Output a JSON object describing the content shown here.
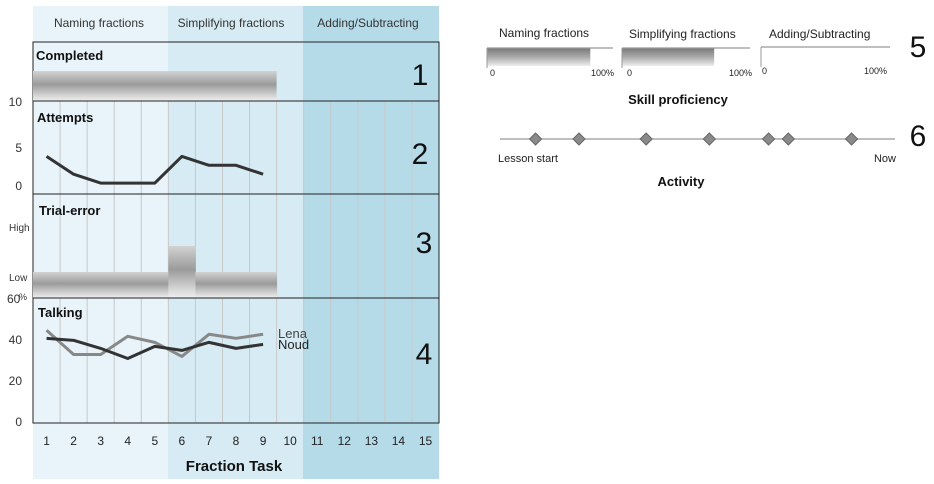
{
  "dashboard": {
    "phases": [
      "Naming fractions",
      "Simplifying fractions",
      "Adding/Subtracting"
    ],
    "task_axis_label": "Fraction Task",
    "tasks": [
      "1",
      "2",
      "3",
      "4",
      "5",
      "6",
      "7",
      "8",
      "9",
      "10",
      "11",
      "12",
      "13",
      "14",
      "15"
    ],
    "colors": {
      "phase1": "#e8f4f9",
      "phase2": "#d6ebf3",
      "phase3": "#b5dbe9",
      "line_dark": "#333333",
      "line_light": "#888888",
      "grid": "#c8c8c8"
    },
    "panels": [
      {
        "number": "1",
        "title": "Completed"
      },
      {
        "number": "2",
        "title": "Attempts"
      },
      {
        "number": "3",
        "title": "Trial-error"
      },
      {
        "number": "4",
        "title": "Talking"
      }
    ]
  },
  "chart_data": [
    {
      "type": "bar",
      "title": "Completed",
      "x": [
        1,
        2,
        3,
        4,
        5,
        6,
        7,
        8,
        9
      ],
      "values": [
        1,
        1,
        1,
        1,
        1,
        1,
        1,
        1,
        1
      ]
    },
    {
      "type": "line",
      "title": "Attempts",
      "x": [
        1,
        2,
        3,
        4,
        5,
        6,
        7,
        8,
        9
      ],
      "series": [
        {
          "values": [
            4,
            2,
            1,
            1,
            1,
            4,
            3,
            3,
            2
          ]
        }
      ],
      "ylim": [
        0,
        10
      ],
      "yticks": [
        "0",
        "5",
        "10"
      ]
    },
    {
      "type": "area",
      "title": "Trial-error",
      "x": [
        1,
        2,
        3,
        4,
        5,
        6,
        7,
        8,
        9
      ],
      "series": [
        {
          "values": [
            "Low",
            "Low",
            "Low",
            "Low",
            "Low",
            "High",
            "Low",
            "Low",
            "Low"
          ]
        }
      ],
      "yticks": [
        "Low",
        "High"
      ]
    },
    {
      "type": "line",
      "title": "Talking",
      "x": [
        1,
        2,
        3,
        4,
        5,
        6,
        7,
        8,
        9
      ],
      "series": [
        {
          "name": "Lena",
          "values": [
            45,
            33,
            33,
            42,
            39,
            32,
            43,
            41,
            43
          ]
        },
        {
          "name": "Noud",
          "values": [
            41,
            40,
            36,
            31,
            37,
            35,
            39,
            36,
            38
          ]
        }
      ],
      "ylim": [
        0,
        60
      ],
      "yticks": [
        "0",
        "20",
        "40",
        "60"
      ],
      "yunit": "%"
    },
    {
      "type": "bar",
      "title": "Skill proficiency",
      "number": "5",
      "categories": [
        "Naming fractions",
        "Simplifying fractions",
        "Adding/Subtracting"
      ],
      "values": [
        82,
        72,
        0
      ],
      "ylim": [
        0,
        100
      ],
      "tick_min": "0",
      "tick_max": "100%"
    },
    {
      "type": "scatter",
      "title": "Activity",
      "number": "6",
      "start_label": "Lesson start",
      "end_label": "Now",
      "x": [
        9,
        20,
        37,
        53,
        68,
        73,
        89
      ],
      "xlim": [
        0,
        100
      ]
    }
  ]
}
